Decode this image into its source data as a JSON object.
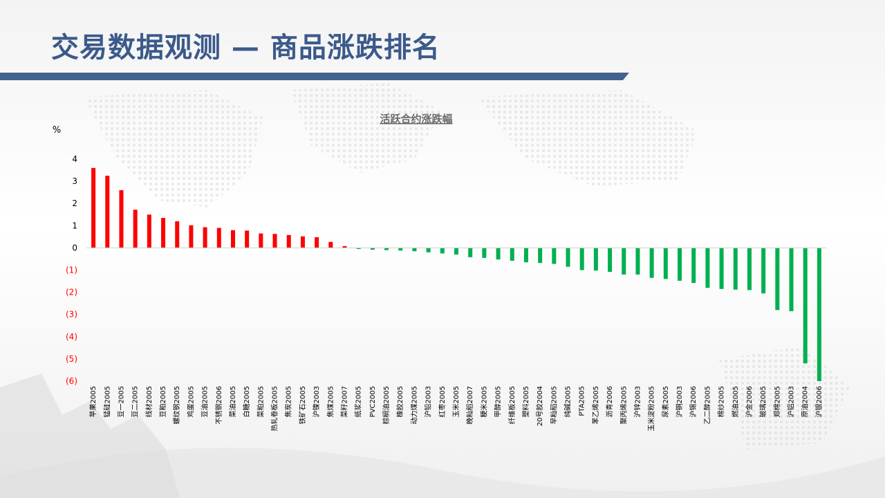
{
  "page": {
    "title": "交易数据观测 — 商品涨跌排名"
  },
  "colors": {
    "title": "#3b5a8a",
    "title_bar": "#42638f",
    "positive": "#ff0000",
    "negative": "#00b050",
    "negative_tick": "#ff0000"
  },
  "chart_data": {
    "type": "bar",
    "title": "活跃合约涨跌幅",
    "ylabel": "%",
    "xlabel": "",
    "ylim": [
      -6,
      4
    ],
    "yticks": [
      4,
      3,
      2,
      1,
      0,
      -1,
      -2,
      -3,
      -4,
      -5,
      -6
    ],
    "ytick_labels": [
      "4",
      "3",
      "2",
      "1",
      "0",
      "(1)",
      "(2)",
      "(3)",
      "(4)",
      "(5)",
      "(6)"
    ],
    "grid": false,
    "legend": "none",
    "categories": [
      "苹果2005",
      "锰硅2005",
      "豆一2005",
      "豆二2005",
      "线材2005",
      "豆粕2005",
      "螺纹钢2005",
      "鸡蛋2005",
      "豆油2005",
      "不锈钢2006",
      "菜油2005",
      "白糖2005",
      "菜粕2005",
      "热轧卷板2005",
      "焦炭2005",
      "铁矿石2005",
      "沪镍2003",
      "焦煤2005",
      "菜籽2007",
      "纸浆2005",
      "PVC2005",
      "棕榈油2005",
      "橡胶2005",
      "动力煤2005",
      "沪铅2003",
      "红枣2005",
      "玉米2005",
      "晚籼稻2007",
      "粳米2005",
      "甲醇2005",
      "纤维板2005",
      "塑料2005",
      "20号胶2004",
      "早籼稻2005",
      "纯碱2005",
      "PTA2005",
      "苯乙烯2005",
      "沥青2006",
      "聚丙烯2005",
      "沪锌2003",
      "玉米淀粉2005",
      "尿素2005",
      "沪铜2003",
      "沪锡2006",
      "乙二醇2005",
      "棉纱2005",
      "燃油2005",
      "沪金2006",
      "玻璃2005",
      "郑棉2005",
      "沪铝2003",
      "原油2004",
      "沪银2006"
    ],
    "values": [
      3.6,
      3.25,
      2.6,
      1.72,
      1.5,
      1.35,
      1.2,
      1.02,
      0.93,
      0.9,
      0.8,
      0.78,
      0.65,
      0.63,
      0.58,
      0.52,
      0.48,
      0.27,
      0.08,
      -0.05,
      -0.08,
      -0.1,
      -0.12,
      -0.15,
      -0.2,
      -0.25,
      -0.3,
      -0.42,
      -0.45,
      -0.52,
      -0.58,
      -0.65,
      -0.68,
      -0.72,
      -0.85,
      -1.0,
      -1.02,
      -1.08,
      -1.2,
      -1.2,
      -1.35,
      -1.4,
      -1.48,
      -1.58,
      -1.8,
      -1.85,
      -1.88,
      -1.9,
      -2.05,
      -2.8,
      -2.85,
      -5.2,
      -6.0
    ]
  }
}
